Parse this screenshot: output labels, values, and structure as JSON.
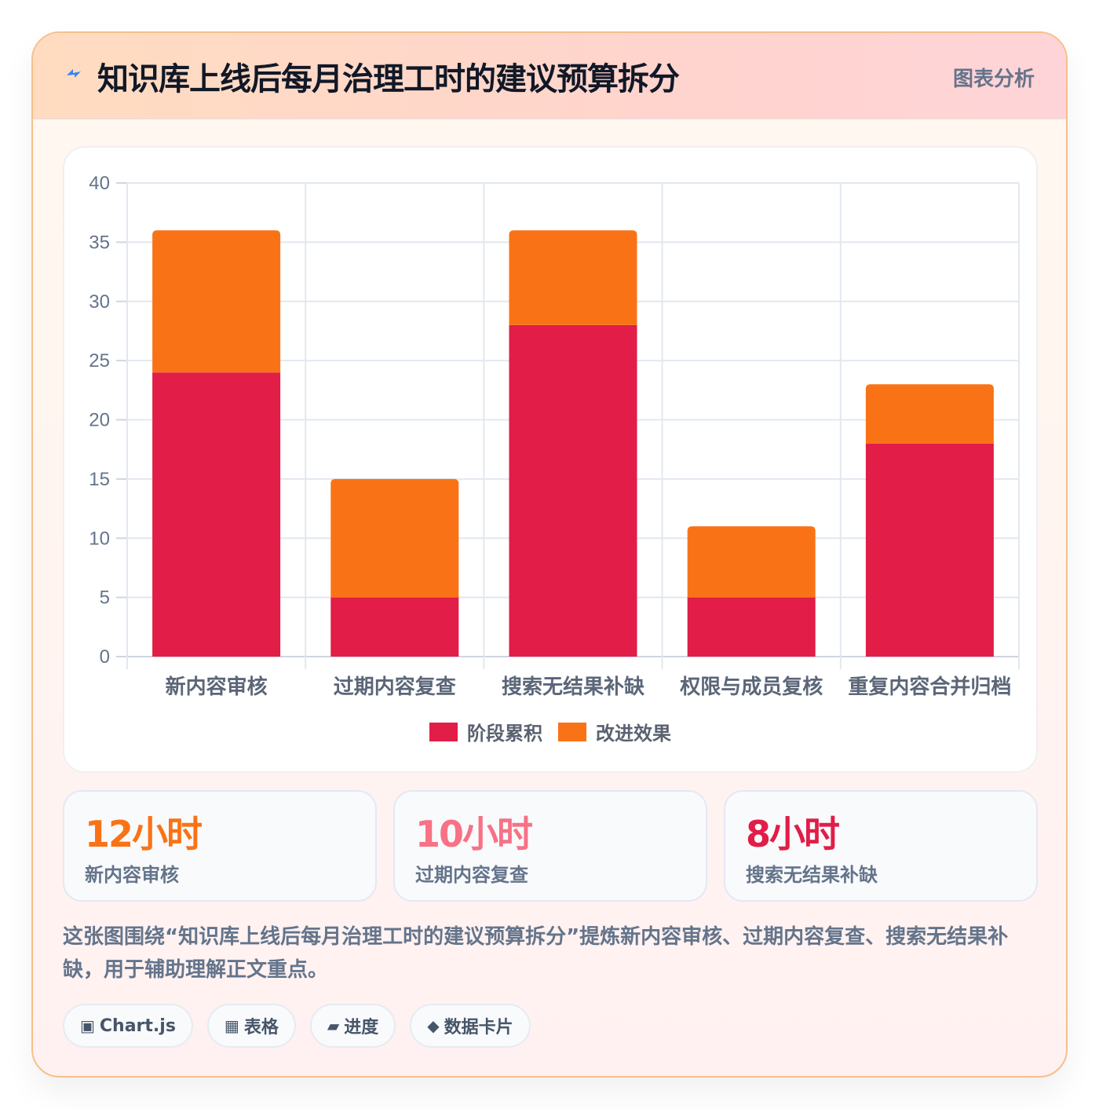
{
  "header": {
    "title": "知识库上线后每月治理工时的建议预算拆分",
    "tag": "图表分析",
    "icon": "lightning-icon"
  },
  "chart_data": {
    "type": "bar",
    "stacked": true,
    "categories": [
      "新内容审核",
      "过期内容复查",
      "搜索无结果补缺",
      "权限与成员复核",
      "重复内容合并归档"
    ],
    "series": [
      {
        "name": "阶段累积",
        "values": [
          24,
          5,
          28,
          5,
          18
        ],
        "color": "#e11d48"
      },
      {
        "name": "改进效果",
        "values": [
          12,
          10,
          8,
          6,
          5
        ],
        "color": "#f97316"
      }
    ],
    "ylim": [
      0,
      40
    ],
    "yticks": [
      0,
      5,
      10,
      15,
      20,
      25,
      30,
      35,
      40
    ],
    "grid": true,
    "legend": "bottom"
  },
  "stats": [
    {
      "value": "12小时",
      "label": "新内容审核",
      "color": "#f97316"
    },
    {
      "value": "10小时",
      "label": "过期内容复查",
      "color": "#f43f5e"
    },
    {
      "value": "8小时",
      "label": "搜索无结果补缺",
      "color": "#e11d48"
    }
  ],
  "summary": "这张图围绕“知识库上线后每月治理工时的建议预算拆分”提炼新内容审核、过期内容复查、搜索无结果补缺，用于辅助理解正文重点。",
  "chips": [
    {
      "icon": "▣",
      "label": "Chart.js"
    },
    {
      "icon": "▦",
      "label": "表格"
    },
    {
      "icon": "▰",
      "label": "进度"
    },
    {
      "icon": "◆",
      "label": "数据卡片"
    }
  ]
}
